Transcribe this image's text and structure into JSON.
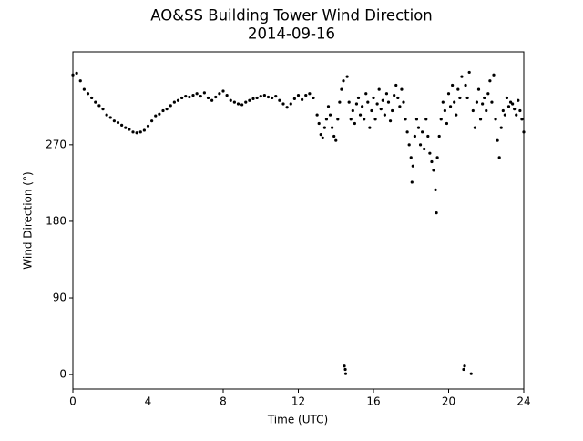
{
  "chart_data": {
    "type": "scatter",
    "title": "AO&SS Building Tower Wind Direction",
    "subtitle": "2014-09-16",
    "x_label": "Time (UTC)",
    "y_label": "Wind Direction (°)",
    "color": "#000000",
    "xlim": [
      0,
      24
    ],
    "xticks": [
      0,
      4,
      8,
      12,
      16,
      20,
      24
    ],
    "ylim": [
      -17,
      379
    ],
    "yticks": [
      0,
      90,
      180,
      270
    ],
    "x": [
      0,
      0.2,
      0.4,
      0.6,
      0.8,
      1.0,
      1.2,
      1.4,
      1.6,
      1.8,
      2.0,
      2.2,
      2.4,
      2.6,
      2.8,
      3.0,
      3.2,
      3.4,
      3.6,
      3.8,
      4.0,
      4.2,
      4.4,
      4.6,
      4.8,
      5.0,
      5.2,
      5.4,
      5.6,
      5.8,
      6.0,
      6.2,
      6.4,
      6.6,
      6.8,
      7.0,
      7.2,
      7.4,
      7.6,
      7.8,
      8.0,
      8.2,
      8.4,
      8.6,
      8.8,
      9.0,
      9.2,
      9.4,
      9.6,
      9.8,
      10.0,
      10.2,
      10.4,
      10.6,
      10.8,
      11.0,
      11.2,
      11.4,
      11.6,
      11.8,
      12.0,
      12.2,
      12.4,
      12.6,
      12.8,
      13.0,
      13.1,
      13.2,
      13.3,
      13.4,
      13.5,
      13.6,
      13.7,
      13.8,
      13.9,
      14.0,
      14.1,
      14.2,
      14.3,
      14.4,
      14.45,
      14.5,
      14.52,
      14.6,
      14.7,
      14.8,
      14.9,
      15.0,
      15.1,
      15.2,
      15.3,
      15.4,
      15.5,
      15.6,
      15.7,
      15.8,
      15.9,
      16.0,
      16.1,
      16.2,
      16.3,
      16.4,
      16.5,
      16.6,
      16.7,
      16.8,
      16.9,
      17.0,
      17.1,
      17.2,
      17.3,
      17.4,
      17.5,
      17.6,
      17.7,
      17.8,
      17.9,
      18.0,
      18.05,
      18.1,
      18.2,
      18.3,
      18.4,
      18.5,
      18.6,
      18.7,
      18.8,
      18.9,
      19.0,
      19.1,
      19.2,
      19.3,
      19.35,
      19.4,
      19.5,
      19.6,
      19.7,
      19.8,
      19.9,
      20.0,
      20.1,
      20.2,
      20.3,
      20.4,
      20.5,
      20.6,
      20.7,
      20.8,
      20.85,
      20.9,
      21.0,
      21.1,
      21.2,
      21.3,
      21.4,
      21.5,
      21.6,
      21.7,
      21.8,
      21.9,
      22.0,
      22.1,
      22.2,
      22.3,
      22.4,
      22.5,
      22.6,
      22.7,
      22.8,
      22.9,
      23.0,
      23.1,
      23.2,
      23.3,
      23.4,
      23.5,
      23.6,
      23.7,
      23.8,
      23.9,
      24.0
    ],
    "values": [
      352,
      354,
      345,
      335,
      330,
      325,
      320,
      316,
      312,
      305,
      302,
      298,
      296,
      293,
      290,
      288,
      285,
      284,
      285,
      287,
      292,
      298,
      304,
      306,
      310,
      312,
      316,
      320,
      322,
      325,
      327,
      326,
      328,
      330,
      327,
      331,
      325,
      322,
      326,
      330,
      333,
      328,
      322,
      320,
      318,
      317,
      320,
      322,
      324,
      325,
      327,
      328,
      326,
      325,
      327,
      322,
      318,
      314,
      318,
      324,
      328,
      323,
      328,
      330,
      325,
      305,
      295,
      282,
      278,
      290,
      300,
      315,
      305,
      290,
      280,
      275,
      300,
      320,
      335,
      345,
      10,
      6,
      1,
      350,
      320,
      300,
      310,
      295,
      318,
      325,
      305,
      315,
      300,
      330,
      320,
      290,
      310,
      325,
      300,
      318,
      335,
      312,
      322,
      305,
      330,
      320,
      298,
      310,
      328,
      340,
      325,
      315,
      335,
      320,
      300,
      285,
      270,
      255,
      226,
      245,
      280,
      300,
      290,
      270,
      285,
      265,
      300,
      280,
      260,
      250,
      240,
      217,
      190,
      255,
      280,
      300,
      320,
      310,
      295,
      330,
      315,
      340,
      320,
      305,
      335,
      325,
      350,
      6,
      10,
      340,
      325,
      355,
      1,
      310,
      290,
      320,
      335,
      300,
      318,
      325,
      310,
      330,
      345,
      320,
      352,
      300,
      275,
      255,
      290,
      310,
      305,
      325,
      315,
      320,
      318,
      312,
      305,
      322,
      310,
      300,
      285
    ]
  }
}
